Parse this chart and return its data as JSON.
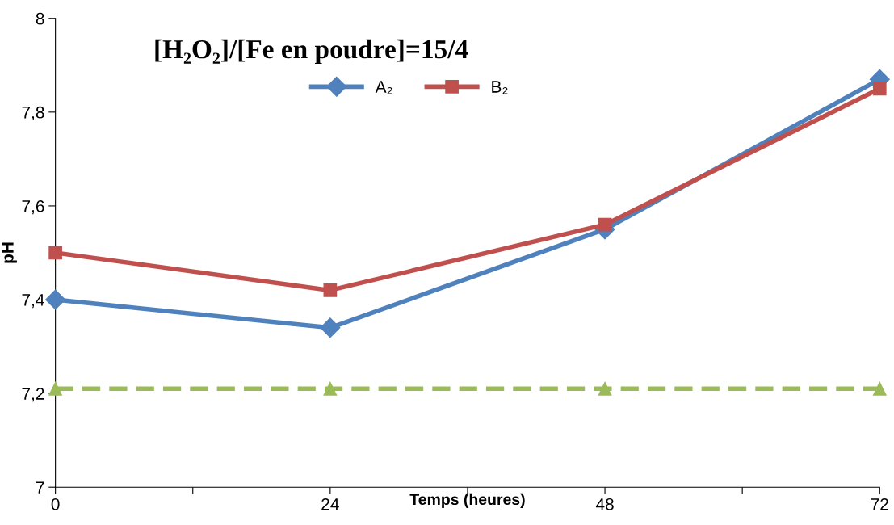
{
  "chart_data": {
    "type": "line",
    "title": "[H₂O₂]/[Fe en poudre]=15/4",
    "xlabel": "Temps (heures)",
    "ylabel": "pH",
    "x": [
      0,
      24,
      48,
      72
    ],
    "series": [
      {
        "name": "A₂",
        "color": "#4f81bd",
        "values": [
          7.4,
          7.34,
          7.55,
          7.87
        ],
        "marker": "diamond",
        "line_style": "solid"
      },
      {
        "name": "B₂",
        "color": "#c0504d",
        "values": [
          7.5,
          7.42,
          7.56,
          7.85
        ],
        "marker": "square",
        "line_style": "solid"
      },
      {
        "color": "#9bbb59",
        "values": [
          7.21,
          7.21,
          7.21,
          7.21
        ],
        "marker": "triangle",
        "line_style": "dashed"
      }
    ],
    "xlim": [
      0,
      72
    ],
    "xticks": [
      0,
      {
        "value": 12,
        "label": null
      },
      24,
      {
        "value": 36,
        "label": null
      },
      48,
      {
        "value": 60,
        "label": null
      },
      72
    ],
    "ylim": [
      7,
      8
    ],
    "yticks": [
      7,
      {
        "value": 7.2,
        "label": "7,2"
      },
      {
        "value": 7.4,
        "label": "7,4"
      },
      {
        "value": 7.6,
        "label": "7,6"
      },
      {
        "value": 7.8,
        "label": "7,8"
      },
      8
    ],
    "grid": false,
    "legend": "top"
  }
}
